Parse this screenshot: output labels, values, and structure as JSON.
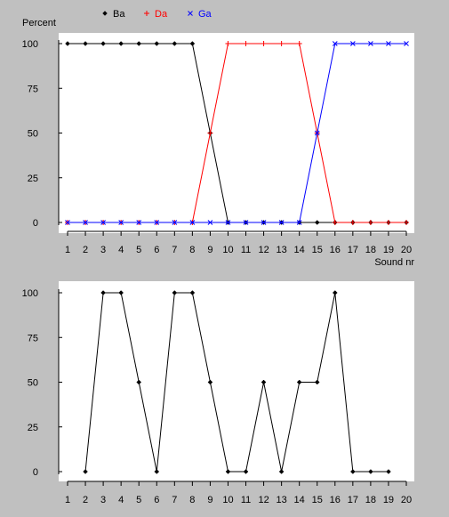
{
  "chart_data": [
    {
      "type": "line",
      "ylabel": "Percent",
      "xlabel": "Sound nr",
      "x": [
        1,
        2,
        3,
        4,
        5,
        6,
        7,
        8,
        9,
        10,
        11,
        12,
        13,
        14,
        15,
        16,
        17,
        18,
        19,
        20
      ],
      "ylim": [
        0,
        100
      ],
      "yticks": [
        0,
        25,
        50,
        75,
        100
      ],
      "legend_position": "top",
      "grid": false,
      "series": [
        {
          "name": "Ba",
          "marker": "diamond",
          "color": "#000000",
          "values": [
            100,
            100,
            100,
            100,
            100,
            100,
            100,
            100,
            50,
            0,
            0,
            0,
            0,
            0,
            0,
            0,
            0,
            0,
            0,
            0
          ]
        },
        {
          "name": "Da",
          "marker": "plus",
          "color": "#ff0000",
          "values": [
            0,
            0,
            0,
            0,
            0,
            0,
            0,
            0,
            50,
            100,
            100,
            100,
            100,
            100,
            50,
            0,
            0,
            0,
            0,
            0
          ]
        },
        {
          "name": "Ga",
          "marker": "cross",
          "color": "#0000ff",
          "values": [
            0,
            0,
            0,
            0,
            0,
            0,
            0,
            0,
            0,
            0,
            0,
            0,
            0,
            0,
            50,
            100,
            100,
            100,
            100,
            100
          ]
        }
      ]
    },
    {
      "type": "line",
      "ylabel": "",
      "xlabel": "",
      "x": [
        1,
        2,
        3,
        4,
        5,
        6,
        7,
        8,
        9,
        10,
        11,
        12,
        13,
        14,
        15,
        16,
        17,
        18,
        19,
        20
      ],
      "ylim": [
        0,
        100
      ],
      "yticks": [
        0,
        25,
        50,
        75,
        100
      ],
      "grid": false,
      "series": [
        {
          "name": "",
          "marker": "diamond",
          "color": "#000000",
          "x": [
            2,
            3,
            4,
            5,
            6,
            7,
            8,
            9,
            10,
            11,
            12,
            13,
            14,
            15,
            16,
            17,
            18,
            19
          ],
          "values": [
            0,
            100,
            100,
            50,
            0,
            100,
            100,
            50,
            0,
            0,
            50,
            0,
            50,
            50,
            100,
            0,
            0,
            0
          ]
        }
      ]
    }
  ]
}
